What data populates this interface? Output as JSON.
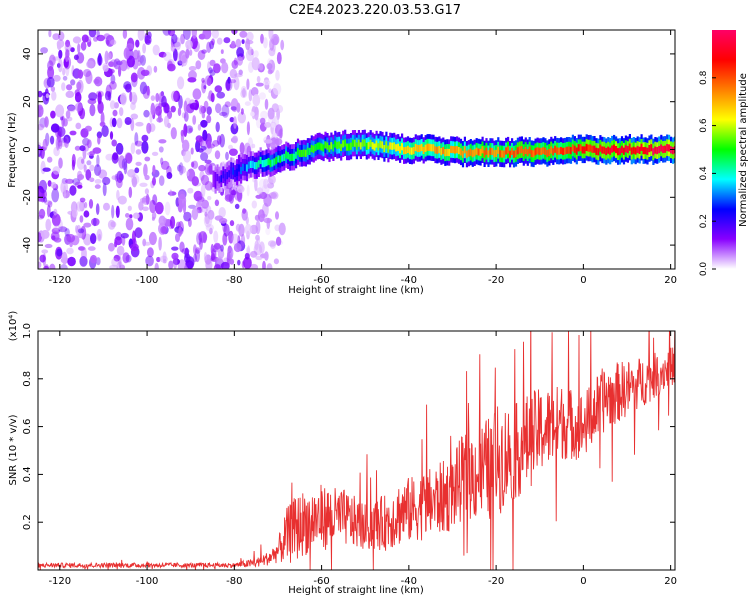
{
  "title": "C2E4.2023.220.03.53.G17",
  "chart_data": [
    {
      "type": "heatmap",
      "xlabel": "Height of straight line (km)",
      "ylabel": "Frequency (Hz)",
      "xlim": [
        -125,
        21
      ],
      "ylim": [
        -50,
        50
      ],
      "xticks": [
        -120,
        -100,
        -80,
        -60,
        -40,
        -20,
        0,
        20
      ],
      "yticks": [
        -40,
        -20,
        0,
        20,
        40
      ],
      "noise_region_x": [
        -125,
        -77
      ],
      "signal_track": {
        "x": [
          -85,
          -80,
          -76,
          -72,
          -68,
          -64,
          -60,
          -55,
          -50,
          -45,
          -40,
          -35,
          -30,
          -25,
          -20,
          -15,
          -10,
          -5,
          0,
          5,
          10,
          15,
          21
        ],
        "freq": [
          -13,
          -9,
          -6,
          -5,
          -3,
          -1,
          1,
          2,
          2,
          1,
          0,
          0,
          -1,
          -1,
          -1,
          -1,
          -1,
          0,
          0,
          0,
          0,
          0,
          0
        ],
        "amplitude": [
          0.15,
          0.25,
          0.35,
          0.45,
          0.45,
          0.5,
          0.5,
          0.55,
          0.55,
          0.6,
          0.65,
          0.7,
          0.7,
          0.75,
          0.75,
          0.8,
          0.8,
          0.8,
          0.85,
          0.9,
          0.9,
          0.95,
          0.95
        ]
      },
      "colorbar": {
        "label": "Normalized spectral amplitude",
        "range": [
          0,
          1
        ],
        "ticks": [
          "0.0",
          "0.2",
          "0.4",
          "0.6",
          "0.8"
        ],
        "colors": [
          "#ffffff",
          "#8800ff",
          "#0000ff",
          "#00ffff",
          "#00ff00",
          "#ffff00",
          "#ff7f00",
          "#ff0000",
          "#ff0066"
        ]
      }
    },
    {
      "type": "line",
      "xlabel": "Height of straight line (km)",
      "ylabel": "SNR (10 * v/v)",
      "ylabel_multiplier": "(x10⁴)",
      "xlim": [
        -125,
        21
      ],
      "ylim": [
        0,
        1.0
      ],
      "xticks": [
        -120,
        -100,
        -80,
        -60,
        -40,
        -20,
        0,
        20
      ],
      "yticks": [
        "0.2",
        "0.4",
        "0.6",
        "0.8",
        "1.0"
      ],
      "color": "#e83030",
      "series": [
        {
          "x": [
            -125,
            -100,
            -80,
            -75,
            -72,
            -70,
            -68,
            -66,
            -64,
            -60,
            -55,
            -50,
            -45,
            -42,
            -38,
            -35,
            -30,
            -28,
            -25,
            -22,
            -20,
            -18,
            -15,
            -12,
            -10,
            -5,
            0,
            2,
            5,
            10,
            15,
            21
          ],
          "y": [
            0.02,
            0.02,
            0.02,
            0.03,
            0.05,
            0.08,
            0.14,
            0.17,
            0.2,
            0.22,
            0.22,
            0.18,
            0.2,
            0.24,
            0.26,
            0.28,
            0.32,
            0.38,
            0.4,
            0.42,
            0.45,
            0.48,
            0.5,
            0.55,
            0.58,
            0.62,
            0.6,
            0.65,
            0.72,
            0.76,
            0.8,
            0.86
          ],
          "spread": [
            0.01,
            0.01,
            0.01,
            0.02,
            0.03,
            0.05,
            0.12,
            0.14,
            0.14,
            0.14,
            0.12,
            0.1,
            0.12,
            0.14,
            0.14,
            0.15,
            0.16,
            0.18,
            0.2,
            0.22,
            0.24,
            0.22,
            0.2,
            0.2,
            0.18,
            0.16,
            0.14,
            0.14,
            0.14,
            0.12,
            0.1,
            0.08
          ]
        }
      ]
    }
  ]
}
